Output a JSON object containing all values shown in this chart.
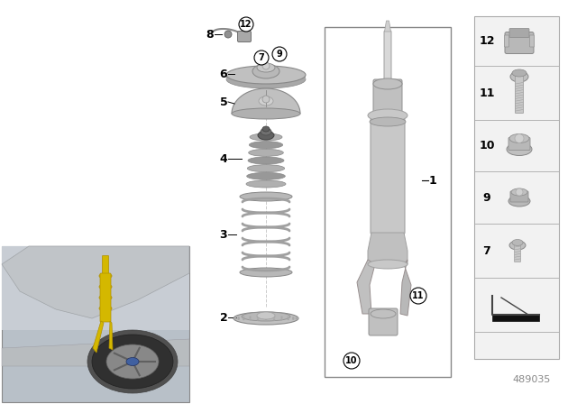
{
  "bg_color": "#ffffff",
  "part_label_color": "#000000",
  "circle_edge": "#000000",
  "silver": "#c0c0c0",
  "silver_dark": "#909090",
  "silver_light": "#d8d8d8",
  "silver_mid": "#b0b0b0",
  "footnote": "489035",
  "footnote_color": "#888888",
  "photo_bg": "#c8c8c8",
  "car_silver": "#c0c0c0",
  "strut_yellow": "#d4b800",
  "sidebar_bg": "#f0f0f0",
  "sidebar_border": "#999999",
  "rect_border": "#888888"
}
